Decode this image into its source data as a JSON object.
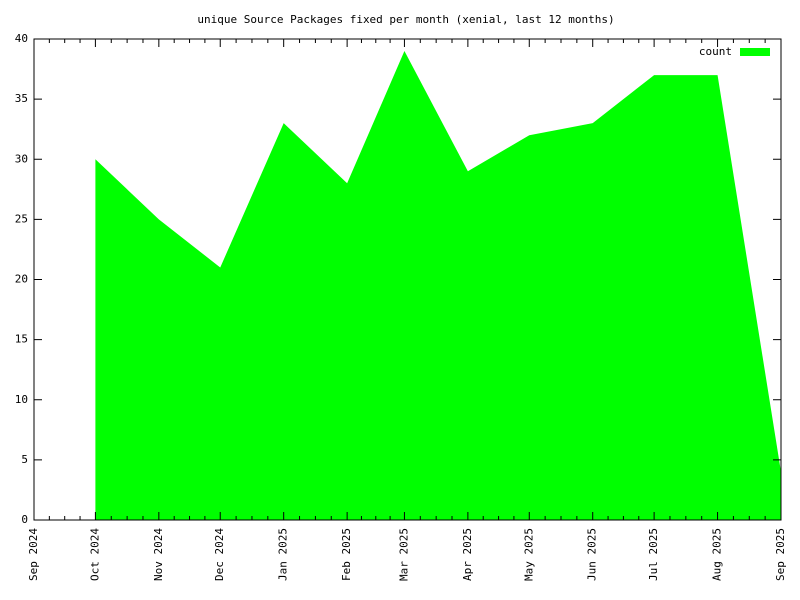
{
  "chart_data": {
    "type": "area",
    "title": "unique Source Packages fixed per month (xenial, last 12 months)",
    "x": [
      "Sep 2024",
      "Oct 2024",
      "Nov 2024",
      "Dec 2024",
      "Jan 2025",
      "Feb 2025",
      "Mar 2025",
      "Apr 2025",
      "May 2025",
      "Jun 2025",
      "Jul 2025",
      "Aug 2025",
      "Sep 2025"
    ],
    "series": [
      {
        "name": "count",
        "color": "#00ff00",
        "values": [
          null,
          30,
          25,
          21,
          33,
          28,
          39,
          29,
          32,
          33,
          37,
          37,
          4
        ]
      }
    ],
    "ylim": [
      0,
      40
    ],
    "yticks": [
      0,
      5,
      10,
      15,
      20,
      25,
      30,
      35,
      40
    ],
    "grid": false,
    "legend": "top-right"
  }
}
